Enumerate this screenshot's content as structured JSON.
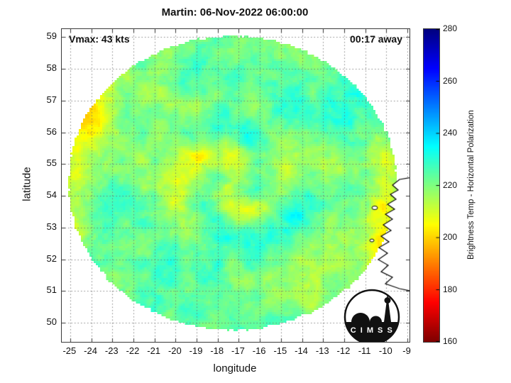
{
  "logo": {
    "text": "C I M S S"
  },
  "chart_data": {
    "type": "heatmap",
    "title": "Martin: 06-Nov-2022 06:00:00",
    "xlabel": "longitude",
    "ylabel": "latitude",
    "xlim": [
      -25.4,
      -8.9
    ],
    "ylim": [
      49.4,
      59.25
    ],
    "x_ticks": [
      -25,
      -24,
      -23,
      -22,
      -21,
      -20,
      -19,
      -18,
      -17,
      -16,
      -15,
      -14,
      -13,
      -12,
      -11,
      -10,
      -9
    ],
    "y_ticks": [
      50,
      51,
      52,
      53,
      54,
      55,
      56,
      57,
      58,
      59
    ],
    "grid": true,
    "annotations": {
      "vmax": {
        "text": "Vmax: 43 kts",
        "position": "top-left"
      },
      "eta": {
        "text": "00:17 away",
        "position": "top-right"
      }
    },
    "colorbar": {
      "label": "Brightness Temp - Horizontal Polarization",
      "min": 160,
      "max": 280,
      "ticks": [
        160,
        180,
        200,
        220,
        240,
        260,
        280
      ],
      "colormap": "jet-reversed (160=dark red, 200=yellow/orange, 220=green, 240=cyan, 280=dark blue)"
    },
    "swath": {
      "shape": "circular",
      "center": {
        "lon": -17.3,
        "lat": 54.4
      },
      "radius_lon_deg": 7.9,
      "radius_lat_deg": 4.7,
      "outside": "no data (white)"
    },
    "field_summary": {
      "typical_value_K": 221,
      "features": [
        {
          "desc": "cyclonic swirl of cool scattering arcs (cyan, ~235-250 K) around storm center",
          "lon": -17.4,
          "lat": 54.4
        },
        {
          "desc": "warm patch (orange, ~200-205 K) at western swath edge",
          "lon": -24.5,
          "lat": 56.3
        },
        {
          "desc": "warm band (orange, ~195-205 K) just west of Irish coast",
          "lon": -10.3,
          "lat": 54.0
        },
        {
          "desc": "diagonal cyan rain-band streaks (~235-245 K) in southwest quadrant",
          "lon": -22.0,
          "lat": 52.0
        },
        {
          "desc": "cyan cluster (~235-245 K) in the north-northeast sector",
          "lon": -14.5,
          "lat": 57.3
        },
        {
          "desc": "Ireland west coastline drawn in black, land masked white",
          "lon": -9.8,
          "lat": 53.3
        }
      ]
    }
  }
}
